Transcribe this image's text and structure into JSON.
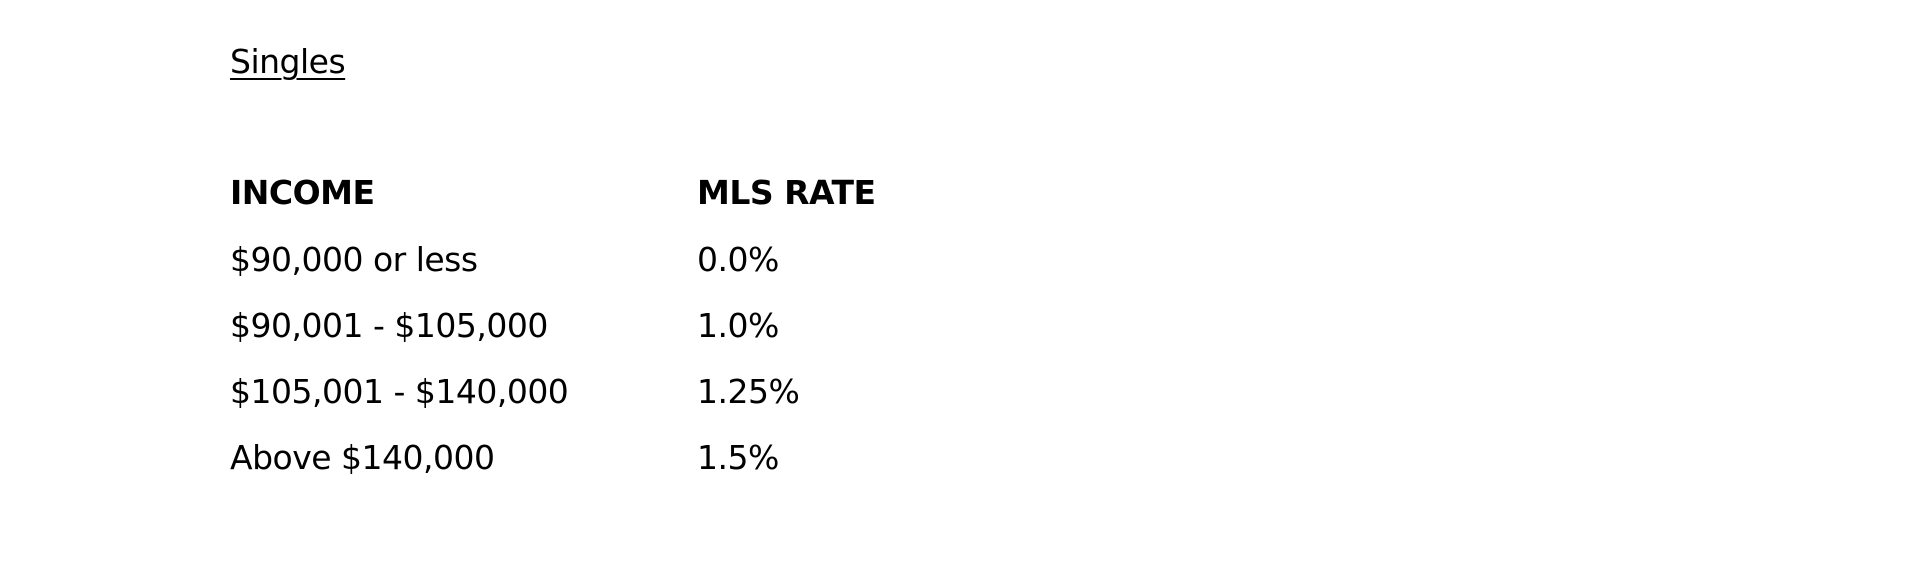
{
  "title": "Singles",
  "table": {
    "header": [
      "INCOME",
      "MLS RATE"
    ],
    "rows": [
      [
        "$90,000 or less",
        "0.0%"
      ],
      [
        "$90,001 - $105,000",
        "1.0%"
      ],
      [
        "$105,001 - $140,000",
        "1.25%"
      ],
      [
        "Above $140,000",
        "1.5%"
      ]
    ]
  }
}
